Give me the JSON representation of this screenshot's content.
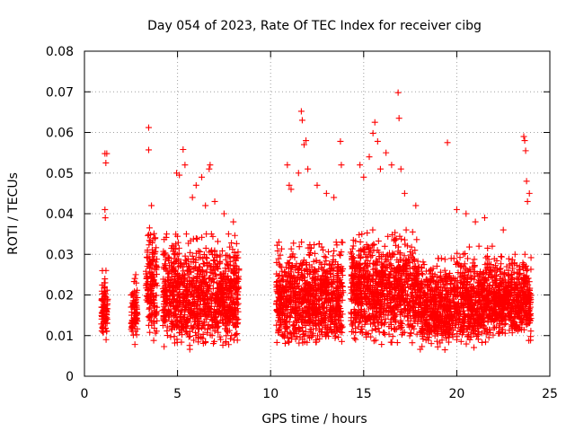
{
  "chart_data": {
    "type": "scatter",
    "title": "Day 054 of 2023, Rate Of TEC Index for receiver cibg",
    "xlabel": "GPS time / hours",
    "ylabel": "ROTI / TECUs",
    "xlim": [
      0,
      25
    ],
    "ylim": [
      0,
      0.08
    ],
    "xticks": [
      0,
      5,
      10,
      15,
      20,
      25
    ],
    "xtick_labels": [
      "0",
      "5",
      "10",
      "15",
      "20",
      "25"
    ],
    "yticks": [
      0,
      0.01,
      0.02,
      0.03,
      0.04,
      0.05,
      0.06,
      0.07,
      0.08
    ],
    "ytick_labels": [
      "0",
      "0.01",
      "0.02",
      "0.03",
      "0.04",
      "0.05",
      "0.06",
      "0.07",
      "0.08"
    ],
    "grid": true,
    "marker": "+",
    "color": "#ff0000",
    "series": [
      {
        "name": "ROTI",
        "segments": [
          {
            "x0": 0.9,
            "x1": 1.25,
            "lo": 0.008,
            "hi": 0.026
          },
          {
            "x0": 2.5,
            "x1": 2.85,
            "lo": 0.007,
            "hi": 0.025
          },
          {
            "x0": 3.3,
            "x1": 3.9,
            "lo": 0.008,
            "hi": 0.038
          },
          {
            "x0": 4.2,
            "x1": 8.3,
            "lo": 0.006,
            "hi": 0.035
          },
          {
            "x0": 10.3,
            "x1": 13.9,
            "lo": 0.006,
            "hi": 0.033
          },
          {
            "x0": 14.3,
            "x1": 18.0,
            "lo": 0.007,
            "hi": 0.036
          },
          {
            "x0": 18.0,
            "x1": 20.0,
            "lo": 0.006,
            "hi": 0.029
          },
          {
            "x0": 20.0,
            "x1": 22.0,
            "lo": 0.006,
            "hi": 0.032
          },
          {
            "x0": 22.0,
            "x1": 24.0,
            "lo": 0.008,
            "hi": 0.03
          }
        ],
        "outliers": [
          [
            1.1,
            0.0548
          ],
          [
            1.2,
            0.0548
          ],
          [
            1.15,
            0.0525
          ],
          [
            1.1,
            0.041
          ],
          [
            1.12,
            0.039
          ],
          [
            3.45,
            0.0612
          ],
          [
            3.45,
            0.0557
          ],
          [
            3.6,
            0.042
          ],
          [
            4.95,
            0.05
          ],
          [
            5.1,
            0.0495
          ],
          [
            5.3,
            0.0558
          ],
          [
            5.4,
            0.052
          ],
          [
            5.8,
            0.044
          ],
          [
            6.0,
            0.047
          ],
          [
            6.3,
            0.049
          ],
          [
            6.5,
            0.042
          ],
          [
            6.7,
            0.051
          ],
          [
            6.75,
            0.052
          ],
          [
            7.0,
            0.043
          ],
          [
            7.5,
            0.04
          ],
          [
            8.0,
            0.038
          ],
          [
            10.9,
            0.052
          ],
          [
            11.0,
            0.047
          ],
          [
            11.1,
            0.046
          ],
          [
            11.5,
            0.05
          ],
          [
            11.65,
            0.0652
          ],
          [
            11.7,
            0.063
          ],
          [
            11.8,
            0.057
          ],
          [
            11.9,
            0.058
          ],
          [
            12.0,
            0.051
          ],
          [
            12.5,
            0.047
          ],
          [
            13.0,
            0.045
          ],
          [
            13.4,
            0.044
          ],
          [
            13.75,
            0.0578
          ],
          [
            13.8,
            0.052
          ],
          [
            14.8,
            0.052
          ],
          [
            15.0,
            0.049
          ],
          [
            15.3,
            0.054
          ],
          [
            15.5,
            0.0598
          ],
          [
            15.6,
            0.0625
          ],
          [
            15.75,
            0.0578
          ],
          [
            15.9,
            0.051
          ],
          [
            16.2,
            0.055
          ],
          [
            16.5,
            0.052
          ],
          [
            16.85,
            0.0698
          ],
          [
            16.9,
            0.0635
          ],
          [
            17.0,
            0.051
          ],
          [
            17.2,
            0.045
          ],
          [
            17.8,
            0.042
          ],
          [
            19.5,
            0.0575
          ],
          [
            20.0,
            0.041
          ],
          [
            20.5,
            0.04
          ],
          [
            21.0,
            0.038
          ],
          [
            21.5,
            0.039
          ],
          [
            22.5,
            0.036
          ],
          [
            23.6,
            0.059
          ],
          [
            23.65,
            0.058
          ],
          [
            23.7,
            0.0555
          ],
          [
            23.75,
            0.048
          ],
          [
            23.8,
            0.043
          ],
          [
            23.9,
            0.045
          ]
        ]
      }
    ]
  }
}
